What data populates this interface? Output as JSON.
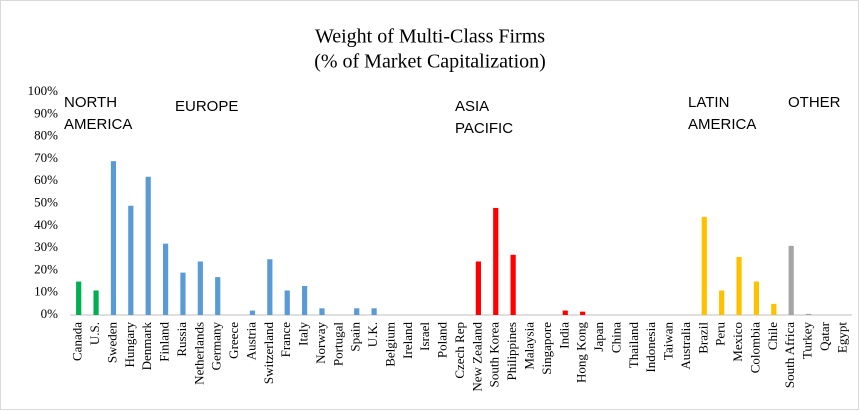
{
  "chart_data": {
    "type": "bar",
    "title": [
      "Weight of Multi-Class Firms",
      "(% of Market Capitalization)"
    ],
    "categories": [
      "Canada",
      "U.S.",
      "Sweden",
      "Hungary",
      "Denmark",
      "Finland",
      "Russia",
      "Netherlands",
      "Germany",
      "Greece",
      "Austria",
      "Switzerland",
      "France",
      "Italy",
      "Norway",
      "Portugal",
      "Spain",
      "U.K.",
      "Belgium",
      "Ireland",
      "Israel",
      "Poland",
      "Czech Rep",
      "New Zealand",
      "South Korea",
      "Philippines",
      "Malaysia",
      "Singapore",
      "India",
      "Hong Kong",
      "Japan",
      "China",
      "Thailand",
      "Indonesia",
      "Taiwan",
      "Australia",
      "Brazil",
      "Peru",
      "Mexico",
      "Colombia",
      "Chile",
      "South Africa",
      "Turkey",
      "Qatar",
      "Egypt"
    ],
    "values": [
      15,
      11,
      69,
      49,
      62,
      32,
      19,
      24,
      17,
      0,
      2,
      25,
      11,
      13,
      3,
      0,
      3,
      3,
      0,
      0,
      0,
      0,
      0,
      24,
      48,
      27,
      0,
      0,
      2,
      1.5,
      0,
      0,
      0,
      0,
      0,
      0,
      44,
      11,
      26,
      15,
      5,
      31,
      0.5,
      0,
      0
    ],
    "colors": [
      "#00b050",
      "#00b050",
      "#5b9bd5",
      "#5b9bd5",
      "#5b9bd5",
      "#5b9bd5",
      "#5b9bd5",
      "#5b9bd5",
      "#5b9bd5",
      "#5b9bd5",
      "#5b9bd5",
      "#5b9bd5",
      "#5b9bd5",
      "#5b9bd5",
      "#5b9bd5",
      "#5b9bd5",
      "#5b9bd5",
      "#5b9bd5",
      "#5b9bd5",
      "#5b9bd5",
      "#5b9bd5",
      "#5b9bd5",
      "#5b9bd5",
      "#ff0000",
      "#ff0000",
      "#ff0000",
      "#ff0000",
      "#ff0000",
      "#ff0000",
      "#ff0000",
      "#ff0000",
      "#ff0000",
      "#ff0000",
      "#ff0000",
      "#ff0000",
      "#ff0000",
      "#ffc000",
      "#ffc000",
      "#ffc000",
      "#ffc000",
      "#ffc000",
      "#a5a5a5",
      "#a5a5a5",
      "#a5a5a5",
      "#a5a5a5"
    ],
    "ylim": [
      0,
      100
    ],
    "yticks": [
      {
        "value": 0,
        "label": "0%"
      },
      {
        "value": 10,
        "label": "10%"
      },
      {
        "value": 20,
        "label": "20%"
      },
      {
        "value": 30,
        "label": "30%"
      },
      {
        "value": 40,
        "label": "40%"
      },
      {
        "value": 50,
        "label": "50%"
      },
      {
        "value": 60,
        "label": "60%"
      },
      {
        "value": 70,
        "label": "70%"
      },
      {
        "value": 80,
        "label": "80%"
      },
      {
        "value": 90,
        "label": "90%"
      },
      {
        "value": 100,
        "label": "100%"
      }
    ],
    "grid": false,
    "annotations": [
      {
        "lines": [
          "NORTH",
          "AMERICA"
        ],
        "color": "#00b050"
      },
      {
        "lines": [
          "EUROPE"
        ],
        "color": "#4472c4"
      },
      {
        "lines": [
          "ASIA",
          "PACIFIC"
        ],
        "color": "#ff0000"
      },
      {
        "lines": [
          "LATIN",
          "AMERICA"
        ],
        "color": "#ffc000"
      },
      {
        "lines": [
          "OTHER"
        ],
        "color": "#a5a5a5"
      }
    ]
  }
}
